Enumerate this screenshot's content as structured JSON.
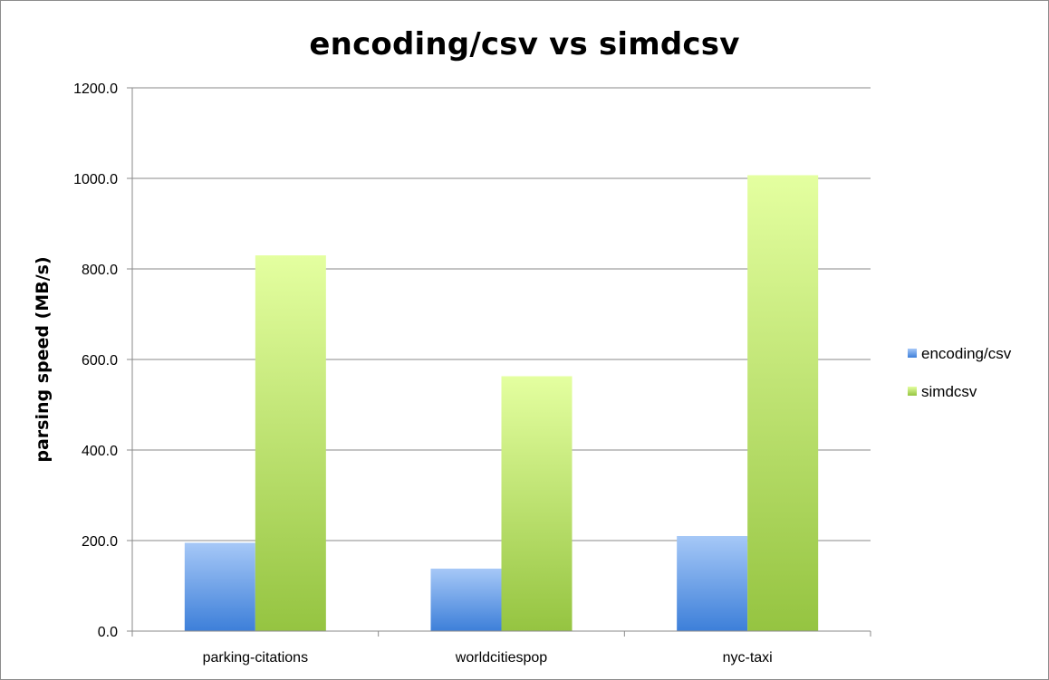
{
  "chart_data": {
    "type": "bar",
    "title": "encoding/csv vs simdcsv",
    "xlabel": "",
    "ylabel": "parsing speed (MB/s)",
    "ylim": [
      0,
      1200
    ],
    "yticks": [
      0,
      200,
      400,
      600,
      800,
      1000,
      1200
    ],
    "ytick_labels": [
      "0.0",
      "200.0",
      "400.0",
      "600.0",
      "800.0",
      "1000.0",
      "1200.0"
    ],
    "grid": true,
    "legend_position": "right",
    "categories": [
      "parking-citations",
      "worldcitiespop",
      "nyc-taxi"
    ],
    "series": [
      {
        "name": "encoding/csv",
        "values": [
          195,
          138,
          210
        ],
        "color_top": "#a6c8f7",
        "color_bottom": "#3d7fd9"
      },
      {
        "name": "simdcsv",
        "values": [
          830,
          563,
          1007
        ],
        "color_top": "#e4ffa0",
        "color_bottom": "#95c441"
      }
    ]
  }
}
